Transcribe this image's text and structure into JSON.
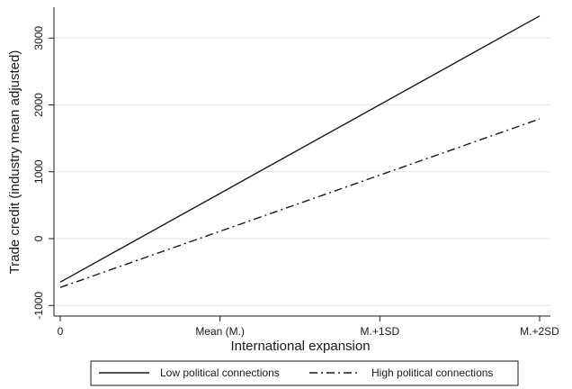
{
  "chart_data": {
    "type": "line",
    "title": "",
    "xlabel": "International expansion",
    "ylabel": "Trade credit (industry mean adjusted)",
    "x_ticks": [
      {
        "value": 0,
        "label": "0"
      },
      {
        "value": 1,
        "label": "Mean (M.)"
      },
      {
        "value": 2,
        "label": "M.+1SD"
      },
      {
        "value": 3,
        "label": "M.+2SD"
      }
    ],
    "y_ticks": [
      -1000,
      0,
      1000,
      2000,
      3000
    ],
    "xlim": [
      0,
      3
    ],
    "ylim": [
      -1000,
      3000
    ],
    "grid": "horizontal",
    "legend_position": "bottom",
    "series": [
      {
        "name": "Low political connections",
        "style": "solid",
        "color": "#1a1a1a",
        "x": [
          0,
          3
        ],
        "y": [
          -650,
          3330
        ]
      },
      {
        "name": "High political connections",
        "style": "dash-dot",
        "color": "#1a1a1a",
        "x": [
          0,
          3
        ],
        "y": [
          -730,
          1790
        ]
      }
    ]
  }
}
